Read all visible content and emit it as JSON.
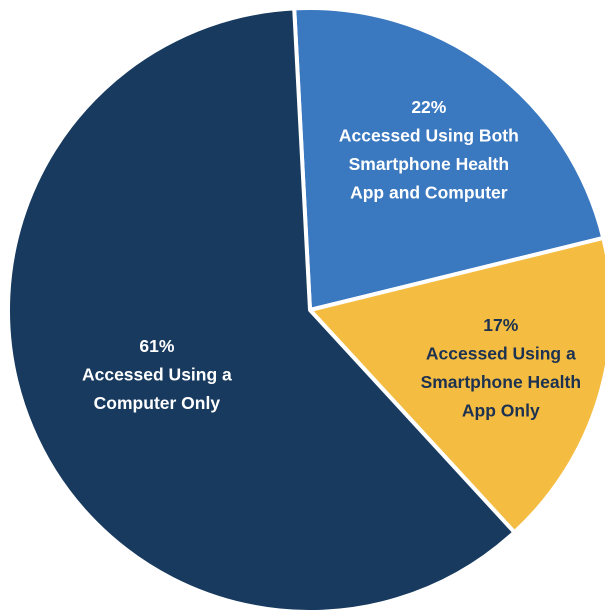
{
  "chart_data": {
    "type": "pie",
    "title": "",
    "slices": [
      {
        "value": 22,
        "pct_label": "22%",
        "label_lines": [
          "Accessed Using Both",
          "Smartphone Health",
          "App and Computer"
        ],
        "color": "#3a78c0",
        "text_color": "#ffffff"
      },
      {
        "value": 17,
        "pct_label": "17%",
        "label_lines": [
          "Accessed Using a",
          "Smartphone Health",
          "App Only"
        ],
        "color": "#f4bd42",
        "text_color": "#1d3250"
      },
      {
        "value": 61,
        "pct_label": "61%",
        "label_lines": [
          "Accessed Using a",
          "Computer Only"
        ],
        "color": "#173a5e",
        "text_color": "#ffffff"
      }
    ]
  }
}
